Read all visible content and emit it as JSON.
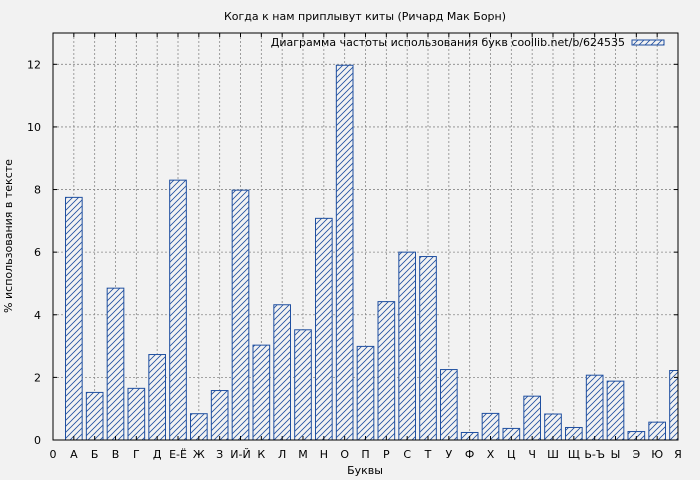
{
  "chart_data": {
    "type": "bar",
    "title": "Когда к нам приплывут киты (Ричард Мак Борн)",
    "xlabel": "Буквы",
    "ylabel": "% использования в тексте",
    "legend": {
      "label": "Диаграмма частоты использования букв coollib.net/b/624535",
      "placement": "top-right"
    },
    "grid": true,
    "ylim": [
      0,
      13
    ],
    "yticks": [
      0,
      2,
      4,
      6,
      8,
      10,
      12
    ],
    "xticks": [
      "0",
      "А",
      "Б",
      "В",
      "Г",
      "Д",
      "Е-Ё",
      "Ж",
      "З",
      "И-Й",
      "К",
      "Л",
      "М",
      "Н",
      "О",
      "П",
      "Р",
      "С",
      "Т",
      "У",
      "Ф",
      "Х",
      "Ц",
      "Ч",
      "Ш",
      "Щ",
      "Ь-Ъ",
      "Ы",
      "Э",
      "Ю",
      "Я"
    ],
    "categories": [
      "А",
      "Б",
      "В",
      "Г",
      "Д",
      "Е-Ё",
      "Ж",
      "З",
      "И-Й",
      "К",
      "Л",
      "М",
      "Н",
      "О",
      "П",
      "Р",
      "С",
      "Т",
      "У",
      "Ф",
      "Х",
      "Ц",
      "Ч",
      "Ш",
      "Щ",
      "Ь-Ъ",
      "Ы",
      "Э",
      "Ю",
      "Я"
    ],
    "values": [
      7.75,
      1.52,
      4.85,
      1.65,
      2.73,
      8.3,
      0.84,
      1.58,
      7.98,
      3.03,
      4.32,
      3.52,
      7.08,
      11.97,
      2.99,
      4.42,
      6.0,
      5.86,
      2.25,
      0.24,
      0.85,
      0.37,
      1.4,
      0.83,
      0.4,
      2.07,
      1.88,
      0.27,
      0.57,
      2.22
    ],
    "colors": {
      "bar": "#1f4fa0",
      "grid": "#888888",
      "background": "#f2f2f2",
      "plot_background": "#f2f2f2"
    }
  }
}
